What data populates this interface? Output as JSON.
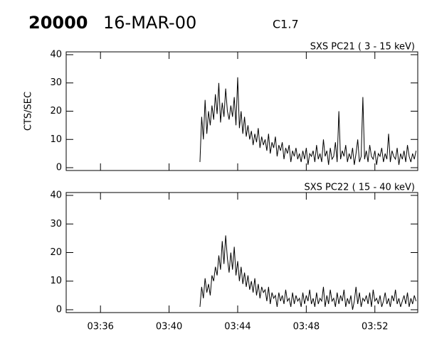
{
  "header": {
    "event": "20000",
    "date": "16-MAR-00",
    "class": "C1.7"
  },
  "chart_data": [
    {
      "type": "line",
      "title": "SXS PC21  (  3 - 15 keV)",
      "ylabel": "CTS/SEC",
      "color": "#000000",
      "xlim": [
        214,
        234.5
      ],
      "ylim": [
        -1,
        41
      ],
      "yticks": [
        0,
        10,
        20,
        30,
        40
      ],
      "xticks": [
        216,
        220,
        224,
        228,
        232
      ],
      "x": [
        221.8,
        221.9,
        222.0,
        222.1,
        222.2,
        222.3,
        222.4,
        222.5,
        222.6,
        222.7,
        222.8,
        222.9,
        223.0,
        223.1,
        223.2,
        223.3,
        223.4,
        223.5,
        223.6,
        223.7,
        223.8,
        223.9,
        224.0,
        224.1,
        224.2,
        224.3,
        224.4,
        224.5,
        224.6,
        224.7,
        224.8,
        224.9,
        225.0,
        225.1,
        225.2,
        225.3,
        225.4,
        225.5,
        225.6,
        225.7,
        225.8,
        225.9,
        226.0,
        226.1,
        226.2,
        226.3,
        226.4,
        226.5,
        226.6,
        226.7,
        226.8,
        226.9,
        227.0,
        227.1,
        227.2,
        227.3,
        227.4,
        227.5,
        227.6,
        227.7,
        227.8,
        227.9,
        228.0,
        228.1,
        228.2,
        228.3,
        228.4,
        228.5,
        228.6,
        228.7,
        228.8,
        228.9,
        229.0,
        229.1,
        229.2,
        229.3,
        229.4,
        229.5,
        229.6,
        229.7,
        229.8,
        229.9,
        230.0,
        230.1,
        230.2,
        230.3,
        230.4,
        230.5,
        230.6,
        230.7,
        230.8,
        230.9,
        231.0,
        231.1,
        231.2,
        231.3,
        231.4,
        231.5,
        231.6,
        231.7,
        231.8,
        231.9,
        232.0,
        232.1,
        232.2,
        232.3,
        232.4,
        232.5,
        232.6,
        232.7,
        232.8,
        232.9,
        233.0,
        233.1,
        233.2,
        233.3,
        233.4,
        233.5,
        233.6,
        233.7,
        233.8,
        233.9,
        234.0,
        234.1,
        234.2,
        234.3,
        234.4
      ],
      "values": [
        2,
        18,
        10,
        24,
        12,
        20,
        15,
        22,
        17,
        26,
        19,
        30,
        16,
        23,
        18,
        28,
        20,
        17,
        22,
        18,
        25,
        15,
        32,
        14,
        20,
        12,
        18,
        11,
        15,
        10,
        13,
        8,
        12,
        9,
        14,
        7,
        11,
        8,
        10,
        6,
        12,
        5,
        9,
        7,
        11,
        4,
        8,
        6,
        9,
        3,
        7,
        5,
        8,
        2,
        6,
        4,
        7,
        3,
        5,
        2,
        6,
        3,
        7,
        1,
        5,
        4,
        6,
        2,
        8,
        3,
        5,
        2,
        10,
        4,
        6,
        1,
        7,
        3,
        4,
        9,
        2,
        20,
        3,
        6,
        4,
        8,
        2,
        5,
        3,
        7,
        1,
        5,
        10,
        2,
        4,
        25,
        3,
        6,
        2,
        8,
        4,
        3,
        6,
        1,
        5,
        4,
        7,
        2,
        5,
        3,
        12,
        2,
        6,
        4,
        3,
        7,
        1,
        5,
        3,
        6,
        2,
        8,
        4,
        2,
        5,
        3,
        6
      ]
    },
    {
      "type": "line",
      "title": "SXS PC22  ( 15 - 40 keV)",
      "color": "#000000",
      "xlim": [
        214,
        234.5
      ],
      "ylim": [
        -1,
        41
      ],
      "yticks": [
        0,
        10,
        20,
        30,
        40
      ],
      "xticks": [
        {
          "value": 216,
          "label": "03:36"
        },
        {
          "value": 220,
          "label": "03:40"
        },
        {
          "value": 224,
          "label": "03:44"
        },
        {
          "value": 228,
          "label": "03:48"
        },
        {
          "value": 232,
          "label": "03:52"
        }
      ],
      "x": [
        221.8,
        221.9,
        222.0,
        222.1,
        222.2,
        222.3,
        222.4,
        222.5,
        222.6,
        222.7,
        222.8,
        222.9,
        223.0,
        223.1,
        223.2,
        223.3,
        223.4,
        223.5,
        223.6,
        223.7,
        223.8,
        223.9,
        224.0,
        224.1,
        224.2,
        224.3,
        224.4,
        224.5,
        224.6,
        224.7,
        224.8,
        224.9,
        225.0,
        225.1,
        225.2,
        225.3,
        225.4,
        225.5,
        225.6,
        225.7,
        225.8,
        225.9,
        226.0,
        226.1,
        226.2,
        226.3,
        226.4,
        226.5,
        226.6,
        226.7,
        226.8,
        226.9,
        227.0,
        227.1,
        227.2,
        227.3,
        227.4,
        227.5,
        227.6,
        227.7,
        227.8,
        227.9,
        228.0,
        228.1,
        228.2,
        228.3,
        228.4,
        228.5,
        228.6,
        228.7,
        228.8,
        228.9,
        229.0,
        229.1,
        229.2,
        229.3,
        229.4,
        229.5,
        229.6,
        229.7,
        229.8,
        229.9,
        230.0,
        230.1,
        230.2,
        230.3,
        230.4,
        230.5,
        230.6,
        230.7,
        230.8,
        230.9,
        231.0,
        231.1,
        231.2,
        231.3,
        231.4,
        231.5,
        231.6,
        231.7,
        231.8,
        231.9,
        232.0,
        232.1,
        232.2,
        232.3,
        232.4,
        232.5,
        232.6,
        232.7,
        232.8,
        232.9,
        233.0,
        233.1,
        233.2,
        233.3,
        233.4,
        233.5,
        233.6,
        233.7,
        233.8,
        233.9,
        234.0,
        234.1,
        234.2,
        234.3,
        234.4
      ],
      "values": [
        1,
        8,
        4,
        11,
        6,
        9,
        5,
        12,
        10,
        15,
        12,
        19,
        14,
        24,
        16,
        26,
        18,
        13,
        20,
        14,
        22,
        12,
        17,
        10,
        15,
        9,
        13,
        8,
        12,
        7,
        10,
        6,
        11,
        5,
        9,
        4,
        8,
        6,
        7,
        3,
        8,
        2,
        6,
        4,
        5,
        1,
        6,
        3,
        5,
        2,
        7,
        3,
        4,
        1,
        6,
        2,
        5,
        3,
        4,
        1,
        6,
        2,
        5,
        3,
        7,
        2,
        4,
        1,
        6,
        2,
        4,
        3,
        8,
        1,
        5,
        2,
        7,
        3,
        4,
        1,
        6,
        2,
        5,
        3,
        7,
        1,
        4,
        2,
        5,
        0,
        3,
        8,
        2,
        6,
        1,
        4,
        3,
        5,
        2,
        6,
        1,
        7,
        3,
        4,
        2,
        5,
        1,
        3,
        6,
        2,
        4,
        1,
        5,
        3,
        7,
        2,
        4,
        1,
        3,
        5,
        2,
        6,
        1,
        4,
        2,
        5,
        3
      ]
    }
  ]
}
